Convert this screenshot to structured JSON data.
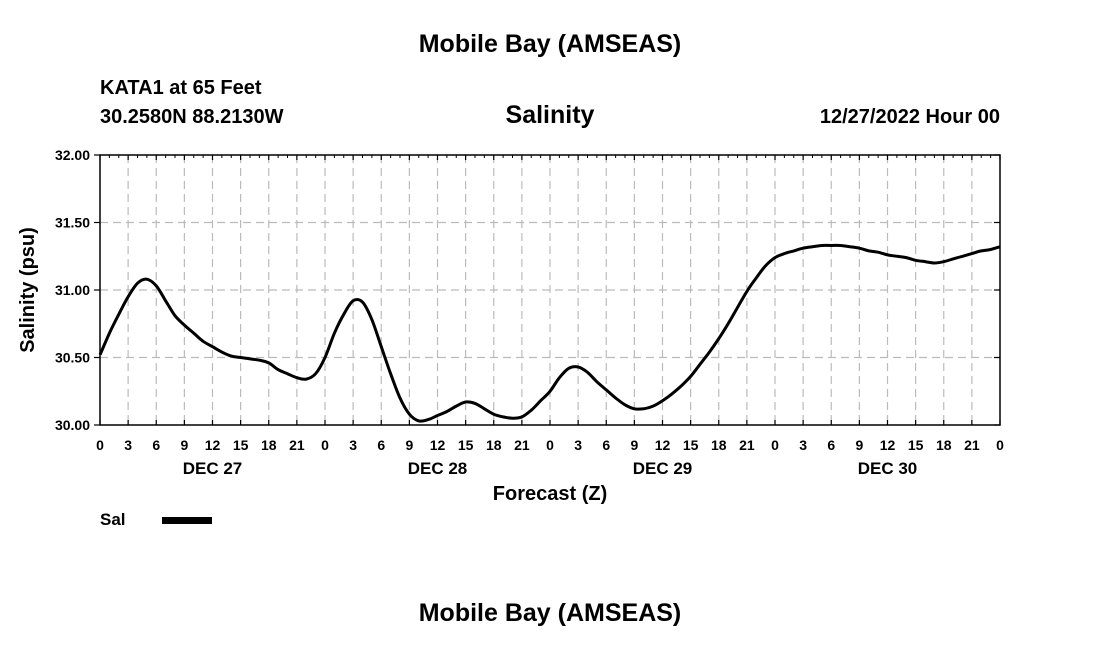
{
  "header": {
    "title": "Mobile Bay (AMSEAS)",
    "station_name": "KATA1 at 65 Feet",
    "station_coords": "30.2580N  88.2130W",
    "issued": "12/27/2022 Hour 00"
  },
  "footer": {
    "title": "Mobile Bay (AMSEAS)"
  },
  "colors": {
    "line": "#000000",
    "grid": "#bbbbbb",
    "background": "#ffffff"
  },
  "chart_data": {
    "type": "line",
    "title": "Salinity",
    "xlabel": "Forecast (Z)",
    "ylabel": "Salinity (psu)",
    "xlim": [
      0,
      96
    ],
    "ylim": [
      30.0,
      32.0
    ],
    "grid": true,
    "x_tick_step_hours": 3,
    "x_tick_labels": [
      "0",
      "3",
      "6",
      "9",
      "12",
      "15",
      "18",
      "21",
      "0",
      "3",
      "6",
      "9",
      "12",
      "15",
      "18",
      "21",
      "0",
      "3",
      "6",
      "9",
      "12",
      "15",
      "18",
      "21",
      "0",
      "3",
      "6",
      "9",
      "12",
      "15",
      "18",
      "21",
      "0"
    ],
    "y_ticks": [
      30.0,
      30.5,
      31.0,
      31.5,
      32.0
    ],
    "y_tick_labels": [
      "30.00",
      "30.50",
      "31.00",
      "31.50",
      "32.00"
    ],
    "day_labels": [
      {
        "hour": 12,
        "label": "DEC 27"
      },
      {
        "hour": 36,
        "label": "DEC 28"
      },
      {
        "hour": 60,
        "label": "DEC 29"
      },
      {
        "hour": 84,
        "label": "DEC 30"
      }
    ],
    "series": [
      {
        "name": "Sal",
        "x": [
          0,
          1,
          2,
          3,
          4,
          5,
          6,
          7,
          8,
          9,
          10,
          11,
          12,
          13,
          14,
          15,
          16,
          17,
          18,
          19,
          20,
          21,
          22,
          23,
          24,
          25,
          26,
          27,
          28,
          29,
          30,
          31,
          32,
          33,
          34,
          35,
          36,
          37,
          38,
          39,
          40,
          41,
          42,
          43,
          44,
          45,
          46,
          47,
          48,
          49,
          50,
          51,
          52,
          53,
          54,
          55,
          56,
          57,
          58,
          59,
          60,
          61,
          62,
          63,
          64,
          65,
          66,
          67,
          68,
          69,
          70,
          71,
          72,
          73,
          74,
          75,
          76,
          77,
          78,
          79,
          80,
          81,
          82,
          83,
          84,
          85,
          86,
          87,
          88,
          89,
          90,
          91,
          92,
          93,
          94,
          95,
          96
        ],
        "values": [
          30.52,
          30.68,
          30.82,
          30.95,
          31.05,
          31.08,
          31.03,
          30.92,
          30.81,
          30.74,
          30.68,
          30.62,
          30.58,
          30.54,
          30.51,
          30.5,
          30.49,
          30.48,
          30.46,
          30.41,
          30.38,
          30.35,
          30.34,
          30.38,
          30.5,
          30.68,
          30.82,
          30.92,
          30.91,
          30.78,
          30.58,
          30.38,
          30.2,
          30.08,
          30.03,
          30.04,
          30.07,
          30.1,
          30.14,
          30.17,
          30.16,
          30.12,
          30.08,
          30.06,
          30.05,
          30.06,
          30.11,
          30.18,
          30.25,
          30.35,
          30.42,
          30.43,
          30.39,
          30.32,
          30.26,
          30.2,
          30.15,
          30.12,
          30.12,
          30.14,
          30.18,
          30.23,
          30.29,
          30.36,
          30.45,
          30.54,
          30.64,
          30.75,
          30.87,
          30.99,
          31.09,
          31.18,
          31.24,
          31.27,
          31.29,
          31.31,
          31.32,
          31.33,
          31.33,
          31.33,
          31.32,
          31.31,
          31.29,
          31.28,
          31.26,
          31.25,
          31.24,
          31.22,
          31.21,
          31.2,
          31.21,
          31.23,
          31.25,
          31.27,
          31.29,
          31.3,
          31.32
        ]
      }
    ]
  }
}
